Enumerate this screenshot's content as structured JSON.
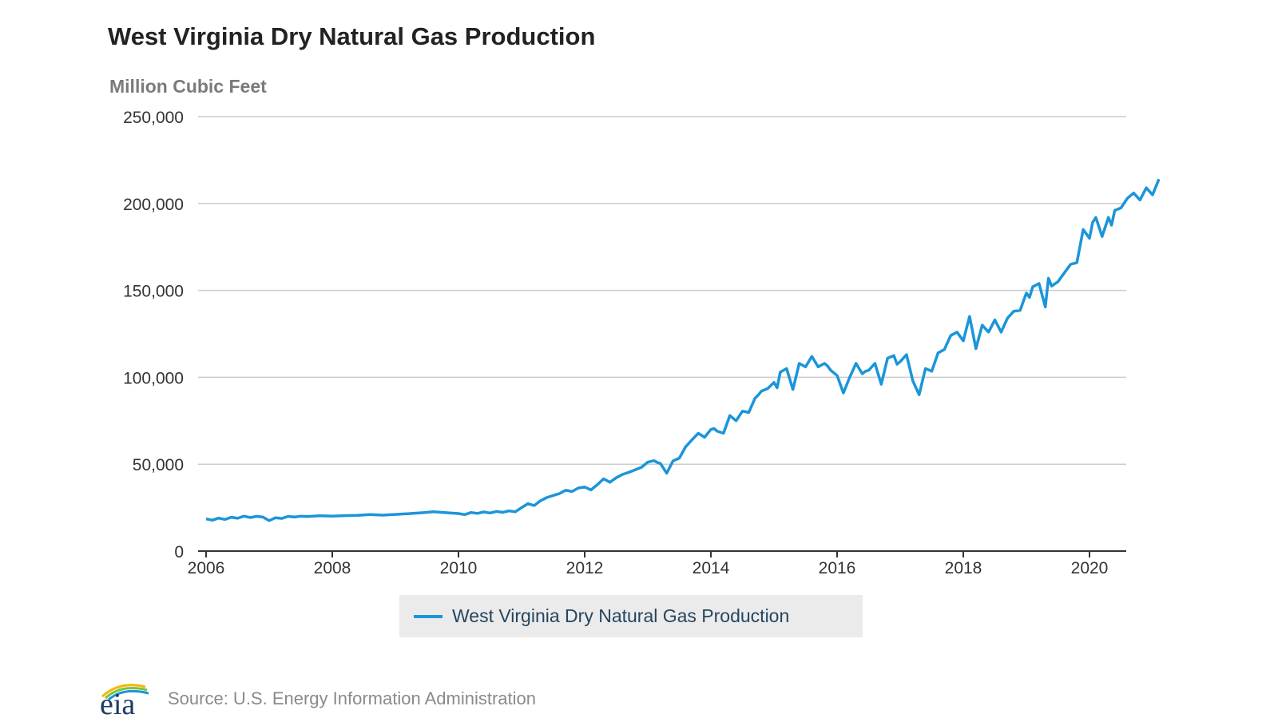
{
  "chart_data": {
    "type": "line",
    "title": "West Virginia Dry Natural Gas Production",
    "ylabel": "Million Cubic Feet",
    "ylim": [
      0,
      250000
    ],
    "yticks": [
      0,
      50000,
      100000,
      150000,
      200000,
      250000
    ],
    "ytick_labels": [
      "0",
      "50,000",
      "100,000",
      "150,000",
      "200,000",
      "250,000"
    ],
    "xlim": [
      2006,
      2021.1
    ],
    "xticks": [
      2006,
      2008,
      2010,
      2012,
      2014,
      2016,
      2018,
      2020
    ],
    "xtick_labels": [
      "2006",
      "2008",
      "2010",
      "2012",
      "2014",
      "2016",
      "2018",
      "2020"
    ],
    "grid": true,
    "legend_position": "bottom-center",
    "series": [
      {
        "name": "West Virginia Dry Natural Gas Production",
        "color": "#1b95d9",
        "x": [
          2006.0,
          2006.1,
          2006.2,
          2006.3,
          2006.4,
          2006.5,
          2006.6,
          2006.7,
          2006.8,
          2006.9,
          2007.0,
          2007.1,
          2007.2,
          2007.3,
          2007.4,
          2007.5,
          2007.6,
          2007.8,
          2008.0,
          2008.2,
          2008.4,
          2008.6,
          2008.8,
          2008.9,
          2009.0,
          2009.2,
          2009.3,
          2009.4,
          2009.5,
          2009.6,
          2009.8,
          2010.0,
          2010.1,
          2010.2,
          2010.3,
          2010.4,
          2010.5,
          2010.6,
          2010.7,
          2010.8,
          2010.9,
          2011.0,
          2011.1,
          2011.2,
          2011.3,
          2011.4,
          2011.5,
          2011.6,
          2011.7,
          2011.8,
          2011.9,
          2012.0,
          2012.1,
          2012.2,
          2012.3,
          2012.4,
          2012.5,
          2012.6,
          2012.7,
          2012.8,
          2012.9,
          2013.0,
          2013.1,
          2013.15,
          2013.2,
          2013.3,
          2013.4,
          2013.5,
          2013.6,
          2013.7,
          2013.8,
          2013.9,
          2014.0,
          2014.05,
          2014.1,
          2014.2,
          2014.3,
          2014.4,
          2014.5,
          2014.6,
          2014.7,
          2014.75,
          2014.8,
          2014.9,
          2015.0,
          2015.05,
          2015.1,
          2015.2,
          2015.3,
          2015.4,
          2015.5,
          2015.6,
          2015.7,
          2015.8,
          2015.85,
          2015.9,
          2016.0,
          2016.1,
          2016.2,
          2016.3,
          2016.4,
          2016.45,
          2016.5,
          2016.6,
          2016.7,
          2016.8,
          2016.9,
          2016.95,
          2017.0,
          2017.1,
          2017.2,
          2017.3,
          2017.4,
          2017.5,
          2017.6,
          2017.7,
          2017.8,
          2017.9,
          2018.0,
          2018.05,
          2018.1,
          2018.2,
          2018.3,
          2018.4,
          2018.5,
          2018.6,
          2018.7,
          2018.8,
          2018.9,
          2019.0,
          2019.05,
          2019.1,
          2019.2,
          2019.3,
          2019.35,
          2019.4,
          2019.5,
          2019.6,
          2019.7,
          2019.8,
          2019.9,
          2020.0,
          2020.05,
          2020.1,
          2020.2,
          2020.3,
          2020.35,
          2020.4,
          2020.5,
          2020.6,
          2020.7,
          2020.8,
          2020.9,
          2021.0,
          2021.1
        ],
        "values": [
          18500,
          17800,
          19000,
          18200,
          19500,
          18900,
          20100,
          19300,
          20000,
          19600,
          17500,
          19200,
          18800,
          20000,
          19600,
          20100,
          19900,
          20300,
          20100,
          20400,
          20600,
          21000,
          20700,
          20900,
          21100,
          21500,
          21800,
          22000,
          22300,
          22600,
          22100,
          21600,
          21000,
          22200,
          21700,
          22500,
          21900,
          22800,
          22300,
          23100,
          22600,
          25000,
          27300,
          26200,
          29000,
          30800,
          32000,
          33100,
          35000,
          34300,
          36300,
          36800,
          35200,
          38200,
          41600,
          39600,
          42200,
          44100,
          45300,
          46800,
          48200,
          51200,
          52000,
          51000,
          50400,
          44800,
          51900,
          53500,
          60000,
          64000,
          67800,
          65500,
          70000,
          70500,
          69000,
          67800,
          78000,
          75000,
          80500,
          79800,
          88000,
          89800,
          92000,
          93500,
          97000,
          94000,
          103000,
          105000,
          93000,
          108000,
          106000,
          112000,
          106000,
          108000,
          106500,
          104000,
          101000,
          91000,
          100000,
          108000,
          102000,
          103500,
          104000,
          108000,
          96000,
          111000,
          112500,
          107500,
          109000,
          113000,
          98000,
          90000,
          105000,
          103500,
          114000,
          116000,
          124000,
          126000,
          121000,
          128000,
          135000,
          116500,
          130000,
          126000,
          133000,
          126000,
          134000,
          138000,
          138500,
          148500,
          146000,
          152000,
          154000,
          140500,
          157000,
          152500,
          155000,
          160000,
          165000,
          166000,
          185000,
          180000,
          189000,
          192000,
          181000,
          192000,
          187500,
          196000,
          197500,
          203000,
          206000,
          202000,
          209000,
          205000,
          214000
        ]
      }
    ]
  },
  "legend": {
    "label": "West Virginia Dry Natural Gas Production",
    "color": "#1b95d9"
  },
  "footer": {
    "logo_text": "eia",
    "source": "Source: U.S. Energy Information Administration"
  }
}
